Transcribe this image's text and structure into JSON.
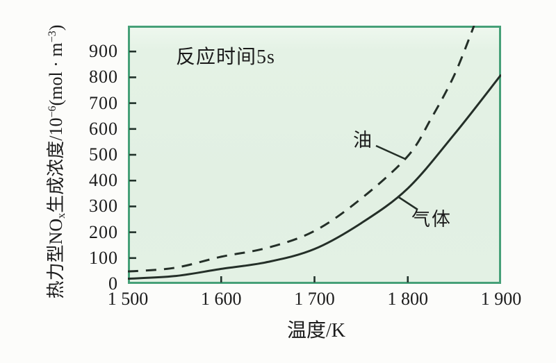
{
  "chart_data": {
    "type": "line",
    "title": "",
    "annotation": "反应时间5s",
    "xlabel": "温度/K",
    "ylabel": "热力型NOₓ生成浓度/10⁻⁶(mol·m⁻³)",
    "ylabel_parts": {
      "p1": "热力型NO",
      "sub1": "x",
      "p2": "生成浓度/10",
      "sup1": "−6",
      "p3": "(mol · m",
      "sup2": "−3",
      "p4": ")"
    },
    "xlim": [
      1500,
      1900
    ],
    "ylim": [
      0,
      1000
    ],
    "grid": false,
    "legend": "inline-labels",
    "plot_bg": "#e3f1e4",
    "border_color": "#46a078",
    "line_color": "#242f28",
    "x_tick_values": [
      1500,
      1600,
      1700,
      1800,
      1900
    ],
    "x_tick_labels": [
      "1 500",
      "1 600",
      "1 700",
      "1 800",
      "1 900"
    ],
    "x_tick_marks": [
      1600,
      1700,
      1800
    ],
    "y_tick_values": [
      0,
      100,
      200,
      300,
      400,
      500,
      600,
      700,
      800,
      900
    ],
    "y_tick_labels": [
      "0",
      "100",
      "200",
      "300",
      "400",
      "500",
      "600",
      "700",
      "800",
      "900"
    ],
    "series": [
      {
        "name": "油",
        "style": "dashed",
        "x": [
          1500,
          1550,
          1600,
          1650,
          1700,
          1750,
          1800,
          1825,
          1850,
          1871
        ],
        "values": [
          48,
          62,
          105,
          140,
          205,
          330,
          495,
          640,
          810,
          1000
        ]
      },
      {
        "name": "气体",
        "style": "solid",
        "x": [
          1500,
          1550,
          1600,
          1650,
          1700,
          1750,
          1800,
          1850,
          1900
        ],
        "values": [
          20,
          30,
          58,
          85,
          135,
          235,
          370,
          580,
          810
        ]
      }
    ]
  }
}
